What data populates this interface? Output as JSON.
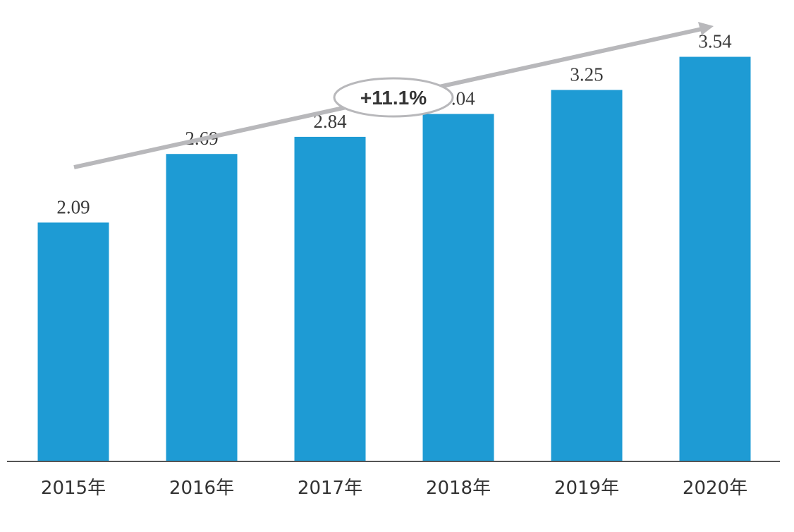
{
  "chart_data": {
    "type": "bar",
    "categories": [
      "2015年",
      "2016年",
      "2017年",
      "2018年",
      "2019年",
      "2020年"
    ],
    "values": [
      2.09,
      2.69,
      2.84,
      3.04,
      3.25,
      3.54
    ],
    "data_labels": [
      "2.09",
      "2.69",
      "2.84",
      "3.04",
      "3.25",
      "3.54"
    ],
    "title": "",
    "xlabel": "",
    "ylabel": "",
    "ylim": [
      0,
      4.0
    ],
    "grid": false,
    "legend": "none",
    "bar_color": "#1e9bd4",
    "annotation": {
      "text": "+11.1%",
      "type": "trend-arrow",
      "color": "#b8b8bb"
    }
  }
}
